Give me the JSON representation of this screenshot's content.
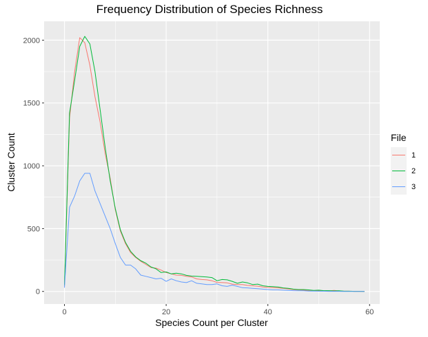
{
  "chart_data": {
    "type": "line",
    "title": "Frequency Distribution of Species Richness",
    "xlabel": "Species Count per Cluster",
    "ylabel": "Cluster Count",
    "xlim": [
      -4,
      62
    ],
    "ylim": [
      -100,
      2150
    ],
    "x_ticks": [
      0,
      20,
      40,
      60
    ],
    "y_ticks": [
      0,
      500,
      1000,
      1500,
      2000
    ],
    "grid": true,
    "legend": {
      "title": "File",
      "position": "right"
    },
    "series": [
      {
        "name": "1",
        "color": "#F8766D",
        "x": [
          0,
          1,
          2,
          3,
          4,
          5,
          6,
          7,
          8,
          9,
          10,
          11,
          12,
          13,
          14,
          15,
          16,
          17,
          18,
          19,
          20,
          21,
          22,
          23,
          24,
          25,
          26,
          27,
          28,
          29,
          30,
          31,
          32,
          33,
          34,
          35,
          36,
          37,
          38,
          39,
          40,
          41,
          42,
          43,
          44,
          45,
          46,
          47,
          48,
          49,
          50,
          51,
          52,
          53,
          54,
          55,
          56,
          57,
          58,
          59
        ],
        "values": [
          40,
          1380,
          1750,
          2020,
          1980,
          1800,
          1550,
          1350,
          1100,
          900,
          650,
          480,
          380,
          310,
          270,
          240,
          215,
          190,
          185,
          170,
          150,
          140,
          130,
          128,
          120,
          115,
          100,
          95,
          92,
          85,
          72,
          70,
          68,
          58,
          55,
          55,
          48,
          45,
          42,
          35,
          32,
          30,
          28,
          25,
          20,
          15,
          12,
          10,
          8,
          7,
          5,
          5,
          4,
          8,
          4,
          2,
          2,
          1,
          1,
          0
        ]
      },
      {
        "name": "2",
        "color": "#00BA38",
        "x": [
          0,
          1,
          2,
          3,
          4,
          5,
          6,
          7,
          8,
          9,
          10,
          11,
          12,
          13,
          14,
          15,
          16,
          17,
          18,
          19,
          20,
          21,
          22,
          23,
          24,
          25,
          26,
          27,
          28,
          29,
          30,
          31,
          32,
          33,
          34,
          35,
          36,
          37,
          38,
          39,
          40,
          41,
          42,
          43,
          44,
          45,
          46,
          47,
          48,
          49,
          50,
          51,
          52,
          53,
          54,
          55,
          56,
          57,
          58,
          59
        ],
        "values": [
          50,
          1420,
          1680,
          1950,
          2030,
          1970,
          1750,
          1450,
          1150,
          880,
          660,
          490,
          390,
          320,
          275,
          245,
          225,
          195,
          180,
          150,
          155,
          140,
          145,
          140,
          128,
          122,
          120,
          118,
          115,
          110,
          85,
          95,
          92,
          80,
          65,
          75,
          68,
          55,
          58,
          45,
          40,
          38,
          35,
          28,
          25,
          18,
          15,
          15,
          12,
          8,
          10,
          6,
          6,
          4,
          5,
          2,
          2,
          1,
          1,
          0
        ]
      },
      {
        "name": "3",
        "color": "#619CFF",
        "x": [
          0,
          1,
          2,
          3,
          4,
          5,
          6,
          7,
          8,
          9,
          10,
          11,
          12,
          13,
          14,
          15,
          16,
          17,
          18,
          19,
          20,
          21,
          22,
          23,
          24,
          25,
          26,
          27,
          28,
          29,
          30,
          31,
          32,
          33,
          34,
          35,
          36,
          37,
          38,
          39,
          40,
          41,
          42,
          43,
          44,
          45,
          46,
          47,
          48,
          49,
          50,
          51,
          52,
          53,
          54,
          55,
          56,
          57,
          58,
          59
        ],
        "values": [
          30,
          670,
          760,
          880,
          940,
          940,
          800,
          700,
          600,
          500,
          380,
          270,
          210,
          210,
          180,
          130,
          120,
          110,
          100,
          105,
          80,
          100,
          85,
          75,
          70,
          85,
          65,
          60,
          55,
          55,
          60,
          45,
          40,
          50,
          40,
          30,
          28,
          25,
          22,
          18,
          15,
          12,
          12,
          10,
          8,
          6,
          5,
          5,
          3,
          3,
          2,
          2,
          1,
          1,
          1,
          0,
          0,
          0,
          0,
          0
        ]
      }
    ]
  }
}
